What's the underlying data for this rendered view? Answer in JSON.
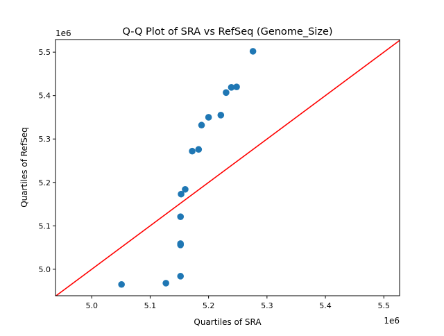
{
  "chart_data": {
    "type": "scatter",
    "title": "Q-Q Plot of SRA vs RefSeq (Genome_Size)",
    "xlabel": "Quartiles of SRA",
    "ylabel": "Quartiles of RefSeq",
    "x_offset_label": "1e6",
    "y_offset_label": "1e6",
    "xlim": [
      4.938,
      5.527
    ],
    "ylim": [
      4.939,
      5.529
    ],
    "xticks": [
      5.0,
      5.1,
      5.2,
      5.3,
      5.4,
      5.5
    ],
    "xtick_labels": [
      "5.0",
      "5.1",
      "5.2",
      "5.3",
      "5.4",
      "5.5"
    ],
    "yticks": [
      5.0,
      5.1,
      5.2,
      5.3,
      5.4,
      5.5
    ],
    "ytick_labels": [
      "5.0",
      "5.1",
      "5.2",
      "5.3",
      "5.4",
      "5.5"
    ],
    "grid": false,
    "point_color": "#1f77b4",
    "reference_line": {
      "type": "y=x",
      "color": "#ff0000"
    },
    "points": [
      {
        "x": 5.051,
        "y": 4.965
      },
      {
        "x": 5.127,
        "y": 4.968
      },
      {
        "x": 5.152,
        "y": 4.984
      },
      {
        "x": 5.152,
        "y": 5.056
      },
      {
        "x": 5.152,
        "y": 5.059
      },
      {
        "x": 5.152,
        "y": 5.121
      },
      {
        "x": 5.153,
        "y": 5.173
      },
      {
        "x": 5.16,
        "y": 5.184
      },
      {
        "x": 5.172,
        "y": 5.272
      },
      {
        "x": 5.183,
        "y": 5.276
      },
      {
        "x": 5.188,
        "y": 5.332
      },
      {
        "x": 5.2,
        "y": 5.35
      },
      {
        "x": 5.221,
        "y": 5.355
      },
      {
        "x": 5.23,
        "y": 5.407
      },
      {
        "x": 5.239,
        "y": 5.419
      },
      {
        "x": 5.248,
        "y": 5.42
      },
      {
        "x": 5.276,
        "y": 5.502
      }
    ]
  }
}
